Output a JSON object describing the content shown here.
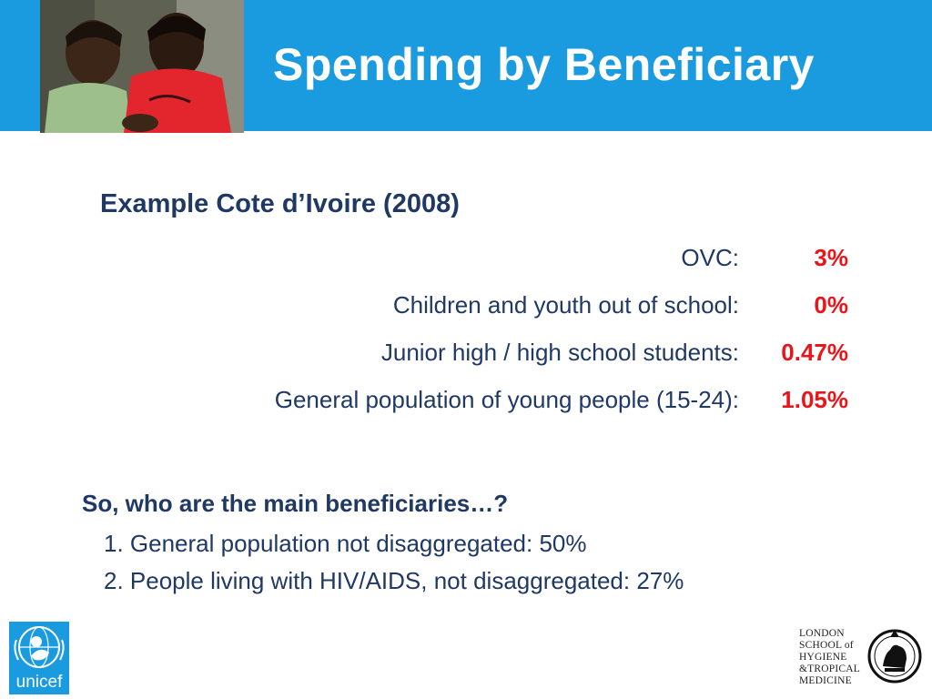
{
  "header": {
    "title": "Spending by Beneficiary",
    "color": "#1a9be0"
  },
  "content": {
    "subtitle": "Example Cote d’Ivoire (2008)",
    "rows": [
      {
        "label": "OVC:",
        "value": "3%"
      },
      {
        "label": "Children and youth out of school:",
        "value": "0%"
      },
      {
        "label": "Junior high / high school students:",
        "value": "0.47%"
      },
      {
        "label": "General population of young people (15-24):",
        "value": "1.05%"
      }
    ],
    "question": "So, who are the main beneficiaries…?",
    "answers": [
      "1. General  population not disaggregated: 50%",
      "2. People living with HIV/AIDS, not disaggregated: 27%"
    ],
    "value_color": "#e8161a",
    "text_color": "#1f3864"
  },
  "logos": {
    "unicef": "unicef",
    "lshtm_lines": [
      "LONDON",
      "SCHOOL of",
      "HYGIENE",
      "&TROPICAL",
      "MEDICINE"
    ]
  }
}
